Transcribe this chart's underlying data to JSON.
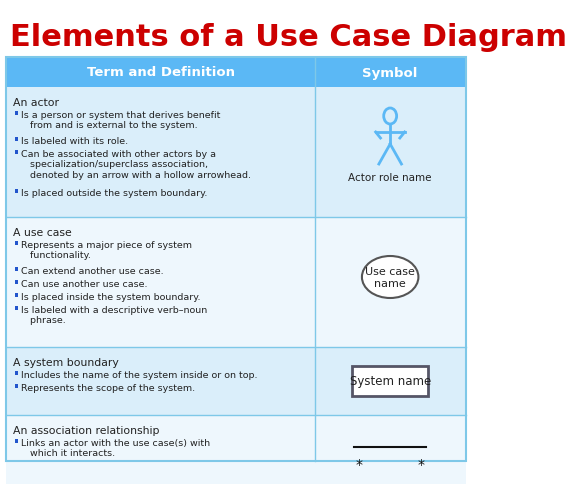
{
  "title": "Elements of a Use Case Diagram",
  "title_color": "#cc0000",
  "title_fontsize": 22,
  "bg_color": "#ffffff",
  "header_bg": "#5bb8f5",
  "header_text_color": "#ffffff",
  "row_bg_light": "#daeefa",
  "row_bg_white": "#eef7fd",
  "border_color": "#7ec8e8",
  "col1_header": "Term and Definition",
  "col2_header": "Symbol",
  "rows": [
    {
      "title": "An actor",
      "bullets": [
        "Is a person or system that derives benefit\n   from and is external to the system.",
        "Is labeled with its role.",
        "Can be associated with other actors by a\n   specialization/superclass association,\n   denoted by an arrow with a hollow arrowhead.",
        "Is placed outside the system boundary."
      ],
      "symbol_type": "actor"
    },
    {
      "title": "A use case",
      "bullets": [
        "Represents a major piece of system\n   functionality.",
        "Can extend another use case.",
        "Can use another use case.",
        "Is placed inside the system boundary.",
        "Is labeled with a descriptive verb–noun\n   phrase."
      ],
      "symbol_type": "usecase"
    },
    {
      "title": "A system boundary",
      "bullets": [
        "Includes the name of the system inside or on top.",
        "Represents the scope of the system."
      ],
      "symbol_type": "boundary"
    },
    {
      "title": "An association relationship",
      "bullets": [
        "Links an actor with the use case(s) with\n   which it interacts."
      ],
      "symbol_type": "association"
    }
  ]
}
